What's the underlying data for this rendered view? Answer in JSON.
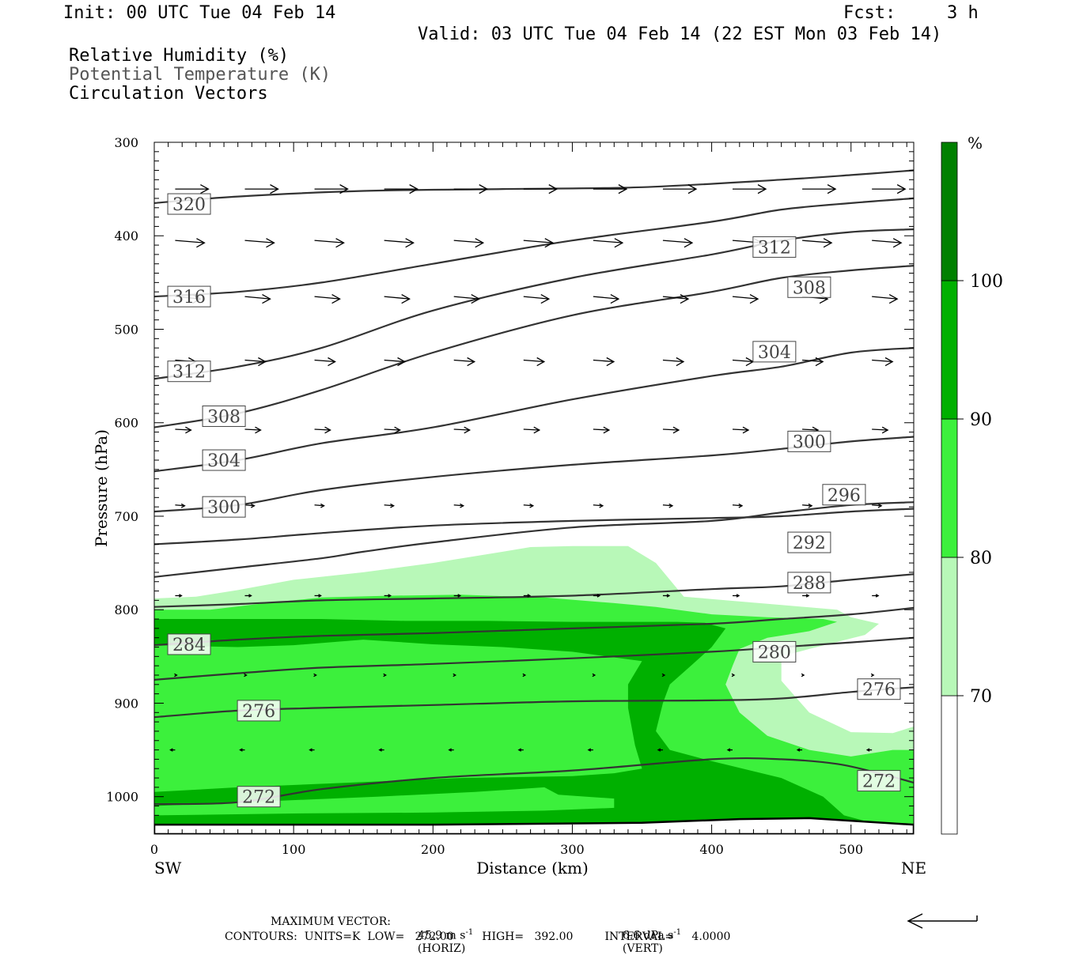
{
  "header": {
    "init": "Init: 00 UTC Tue 04 Feb 14",
    "fcst_label": "Fcst:",
    "fcst_value": "3 h",
    "valid": "Valid: 03 UTC Tue 04 Feb 14 (22 EST Mon 03 Feb 14)",
    "fields": [
      "Relative Humidity (%)",
      "Potential Temperature (K)",
      "Circulation Vectors"
    ]
  },
  "footer": {
    "max_vector_label": "MAXIMUM VECTOR:",
    "max_horiz_value": "45.9 m s",
    "max_horiz_unit": "(HORIZ)",
    "max_vert_value": "6.6 dPa s",
    "max_vert_unit": "(VERT)",
    "exponent": "-1",
    "contours": "CONTOURS:  UNITS=K  LOW=   272.00        HIGH=   392.00         INTERVAL=     4.0000"
  },
  "chart_data": {
    "type": "cross-section",
    "xlabel": "Distance (km)",
    "ylabel": "Pressure (hPa)",
    "xlim": [
      0,
      545
    ],
    "ylim": [
      1040,
      300
    ],
    "x_ticks": [
      0,
      100,
      200,
      300,
      400,
      500
    ],
    "y_ticks": [
      300,
      400,
      500,
      600,
      700,
      800,
      900,
      1000
    ],
    "x_end_labels": {
      "left": "SW",
      "right": "NE"
    },
    "colorbar": {
      "unit": "%",
      "ticks": [
        70,
        80,
        90,
        100
      ],
      "levels": [
        {
          "from": 0,
          "to": 70,
          "color": "#ffffff"
        },
        {
          "from": 70,
          "to": 80,
          "color": "#b8f8b8"
        },
        {
          "from": 80,
          "to": 90,
          "color": "#3cf03c"
        },
        {
          "from": 90,
          "to": 100,
          "color": "#00b000"
        },
        {
          "from": 100,
          "to": 110,
          "color": "#008000"
        }
      ]
    },
    "rh_regions": [
      {
        "level": 70,
        "color": "#b8f8b8",
        "points": [
          [
            0,
            788
          ],
          [
            30,
            786
          ],
          [
            60,
            779
          ],
          [
            100,
            768
          ],
          [
            150,
            760
          ],
          [
            200,
            750
          ],
          [
            250,
            738
          ],
          [
            270,
            733
          ],
          [
            300,
            732
          ],
          [
            340,
            732
          ],
          [
            360,
            750
          ],
          [
            380,
            786
          ],
          [
            450,
            795
          ],
          [
            490,
            800
          ],
          [
            500,
            808
          ],
          [
            520,
            815
          ],
          [
            510,
            827
          ],
          [
            470,
            842
          ],
          [
            450,
            850
          ],
          [
            450,
            876
          ],
          [
            470,
            910
          ],
          [
            500,
            931
          ],
          [
            530,
            932
          ],
          [
            545,
            925
          ],
          [
            545,
            1040
          ],
          [
            0,
            1040
          ]
        ]
      },
      {
        "level": 80,
        "color": "#3cf03c",
        "points": [
          [
            0,
            800
          ],
          [
            40,
            800
          ],
          [
            80,
            793
          ],
          [
            120,
            787
          ],
          [
            170,
            785
          ],
          [
            220,
            784
          ],
          [
            280,
            787
          ],
          [
            330,
            793
          ],
          [
            360,
            797
          ],
          [
            400,
            805
          ],
          [
            440,
            808
          ],
          [
            480,
            810
          ],
          [
            490,
            813
          ],
          [
            470,
            823
          ],
          [
            440,
            830
          ],
          [
            420,
            842
          ],
          [
            415,
            860
          ],
          [
            410,
            880
          ],
          [
            420,
            910
          ],
          [
            440,
            935
          ],
          [
            470,
            950
          ],
          [
            500,
            957
          ],
          [
            530,
            950
          ],
          [
            545,
            950
          ],
          [
            545,
            1040
          ],
          [
            0,
            1040
          ]
        ]
      },
      {
        "level": 90,
        "color": "#00b000",
        "points": [
          [
            0,
            810
          ],
          [
            60,
            810
          ],
          [
            120,
            810
          ],
          [
            180,
            812
          ],
          [
            240,
            812
          ],
          [
            300,
            813
          ],
          [
            350,
            813
          ],
          [
            375,
            813
          ],
          [
            395,
            814
          ],
          [
            410,
            820
          ],
          [
            400,
            840
          ],
          [
            385,
            860
          ],
          [
            370,
            880
          ],
          [
            365,
            900
          ],
          [
            360,
            930
          ],
          [
            370,
            950
          ],
          [
            400,
            962
          ],
          [
            450,
            980
          ],
          [
            480,
            1000
          ],
          [
            495,
            1020
          ],
          [
            545,
            1040
          ],
          [
            0,
            1040
          ],
          [
            0,
            995
          ],
          [
            60,
            990
          ],
          [
            140,
            985
          ],
          [
            220,
            980
          ],
          [
            300,
            978
          ],
          [
            330,
            975
          ],
          [
            350,
            970
          ],
          [
            345,
            945
          ],
          [
            340,
            905
          ],
          [
            340,
            880
          ],
          [
            350,
            855
          ],
          [
            300,
            845
          ],
          [
            250,
            840
          ],
          [
            200,
            837
          ],
          [
            150,
            832
          ],
          [
            100,
            838
          ],
          [
            60,
            840
          ],
          [
            0,
            838
          ]
        ]
      },
      {
        "level": 80,
        "color": "#3cf03c",
        "points": [
          [
            0,
            1010
          ],
          [
            80,
            1005
          ],
          [
            160,
            1000
          ],
          [
            230,
            995
          ],
          [
            280,
            990
          ],
          [
            290,
            998
          ],
          [
            310,
            1000
          ],
          [
            330,
            1002
          ],
          [
            330,
            1012
          ],
          [
            280,
            1015
          ],
          [
            200,
            1017
          ],
          [
            100,
            1018
          ],
          [
            0,
            1020
          ]
        ]
      }
    ],
    "theta_contours": [
      {
        "level": 272,
        "points": [
          [
            0,
            1008
          ],
          [
            60,
            1006
          ],
          [
            120,
            992
          ],
          [
            200,
            980
          ],
          [
            300,
            972
          ],
          [
            400,
            960
          ],
          [
            450,
            960
          ],
          [
            490,
            965
          ],
          [
            520,
            975
          ],
          [
            545,
            985
          ]
        ]
      },
      {
        "level": 276,
        "points": [
          [
            0,
            915
          ],
          [
            60,
            908
          ],
          [
            120,
            905
          ],
          [
            200,
            902
          ],
          [
            300,
            898
          ],
          [
            400,
            897
          ],
          [
            450,
            895
          ],
          [
            500,
            888
          ],
          [
            545,
            883
          ]
        ]
      },
      {
        "level": 280,
        "points": [
          [
            0,
            875
          ],
          [
            60,
            868
          ],
          [
            120,
            862
          ],
          [
            200,
            858
          ],
          [
            300,
            852
          ],
          [
            400,
            845
          ],
          [
            450,
            840
          ],
          [
            500,
            835
          ],
          [
            545,
            830
          ]
        ]
      },
      {
        "level": 284,
        "points": [
          [
            0,
            838
          ],
          [
            60,
            832
          ],
          [
            120,
            828
          ],
          [
            200,
            825
          ],
          [
            300,
            820
          ],
          [
            400,
            815
          ],
          [
            450,
            810
          ],
          [
            500,
            805
          ],
          [
            545,
            798
          ]
        ]
      },
      {
        "level": 288,
        "points": [
          [
            0,
            797
          ],
          [
            60,
            794
          ],
          [
            120,
            790
          ],
          [
            200,
            788
          ],
          [
            300,
            785
          ],
          [
            400,
            778
          ],
          [
            450,
            775
          ],
          [
            500,
            768
          ],
          [
            545,
            762
          ]
        ]
      },
      {
        "level": 292,
        "points": [
          [
            0,
            730
          ],
          [
            60,
            725
          ],
          [
            120,
            718
          ],
          [
            200,
            710
          ],
          [
            300,
            705
          ],
          [
            400,
            702
          ],
          [
            450,
            700
          ],
          [
            500,
            695
          ],
          [
            545,
            692
          ]
        ]
      },
      {
        "level": 296,
        "points": [
          [
            0,
            765
          ],
          [
            60,
            755
          ],
          [
            120,
            745
          ],
          [
            150,
            738
          ],
          [
            200,
            728
          ],
          [
            300,
            712
          ],
          [
            400,
            705
          ],
          [
            450,
            696
          ],
          [
            500,
            688
          ],
          [
            545,
            685
          ]
        ]
      },
      {
        "level": 300,
        "points": [
          [
            0,
            695
          ],
          [
            60,
            688
          ],
          [
            120,
            672
          ],
          [
            200,
            658
          ],
          [
            300,
            645
          ],
          [
            400,
            635
          ],
          [
            450,
            628
          ],
          [
            500,
            620
          ],
          [
            545,
            615
          ]
        ]
      },
      {
        "level": 304,
        "points": [
          [
            0,
            652
          ],
          [
            60,
            640
          ],
          [
            120,
            622
          ],
          [
            200,
            605
          ],
          [
            300,
            575
          ],
          [
            400,
            550
          ],
          [
            450,
            540
          ],
          [
            500,
            525
          ],
          [
            545,
            520
          ]
        ]
      },
      {
        "level": 308,
        "points": [
          [
            0,
            605
          ],
          [
            60,
            590
          ],
          [
            120,
            565
          ],
          [
            200,
            525
          ],
          [
            300,
            485
          ],
          [
            400,
            460
          ],
          [
            450,
            445
          ],
          [
            500,
            437
          ],
          [
            545,
            432
          ]
        ]
      },
      {
        "level": 312,
        "points": [
          [
            0,
            553
          ],
          [
            60,
            540
          ],
          [
            120,
            520
          ],
          [
            200,
            480
          ],
          [
            300,
            445
          ],
          [
            400,
            420
          ],
          [
            450,
            405
          ],
          [
            500,
            396
          ],
          [
            545,
            393
          ]
        ]
      },
      {
        "level": 316,
        "points": [
          [
            0,
            465
          ],
          [
            60,
            460
          ],
          [
            120,
            450
          ],
          [
            200,
            430
          ],
          [
            300,
            405
          ],
          [
            400,
            385
          ],
          [
            450,
            372
          ],
          [
            500,
            365
          ],
          [
            545,
            360
          ]
        ]
      },
      {
        "level": 320,
        "points": [
          [
            0,
            365
          ],
          [
            60,
            358
          ],
          [
            150,
            352
          ],
          [
            250,
            350
          ],
          [
            350,
            348
          ],
          [
            450,
            340
          ],
          [
            500,
            335
          ],
          [
            545,
            330
          ]
        ]
      }
    ],
    "theta_labels": [
      {
        "text": "320",
        "x": 25,
        "p": 366
      },
      {
        "text": "316",
        "x": 25,
        "p": 465
      },
      {
        "text": "312",
        "x": 25,
        "p": 545
      },
      {
        "text": "308",
        "x": 50,
        "p": 593
      },
      {
        "text": "304",
        "x": 50,
        "p": 640
      },
      {
        "text": "300",
        "x": 50,
        "p": 690
      },
      {
        "text": "312",
        "x": 445,
        "p": 412
      },
      {
        "text": "308",
        "x": 470,
        "p": 455
      },
      {
        "text": "304",
        "x": 445,
        "p": 524
      },
      {
        "text": "300",
        "x": 470,
        "p": 620
      },
      {
        "text": "296",
        "x": 495,
        "p": 677
      },
      {
        "text": "292",
        "x": 470,
        "p": 728
      },
      {
        "text": "288",
        "x": 470,
        "p": 771
      },
      {
        "text": "280",
        "x": 445,
        "p": 845
      },
      {
        "text": "276",
        "x": 520,
        "p": 885
      },
      {
        "text": "272",
        "x": 520,
        "p": 983
      },
      {
        "text": "284",
        "x": 25,
        "p": 837
      },
      {
        "text": "276",
        "x": 75,
        "p": 908
      },
      {
        "text": "272",
        "x": 75,
        "p": 1000
      }
    ],
    "vector_rows": [
      {
        "p": 350,
        "len": 42,
        "tilt": 0
      },
      {
        "p": 405,
        "len": 37,
        "tilt": 3
      },
      {
        "p": 465,
        "len": 32,
        "tilt": 3
      },
      {
        "p": 533,
        "len": 26,
        "tilt": 2
      },
      {
        "p": 607,
        "len": 20,
        "tilt": 1
      },
      {
        "p": 688,
        "len": 12,
        "tilt": 1
      },
      {
        "p": 785,
        "len": 8,
        "tilt": 0
      },
      {
        "p": 870,
        "len": 2,
        "tilt": 0
      },
      {
        "p": 950,
        "len": -6,
        "tilt": 0
      }
    ],
    "vector_x": [
      15,
      65,
      115,
      165,
      215,
      265,
      315,
      365,
      415,
      465,
      515
    ]
  }
}
